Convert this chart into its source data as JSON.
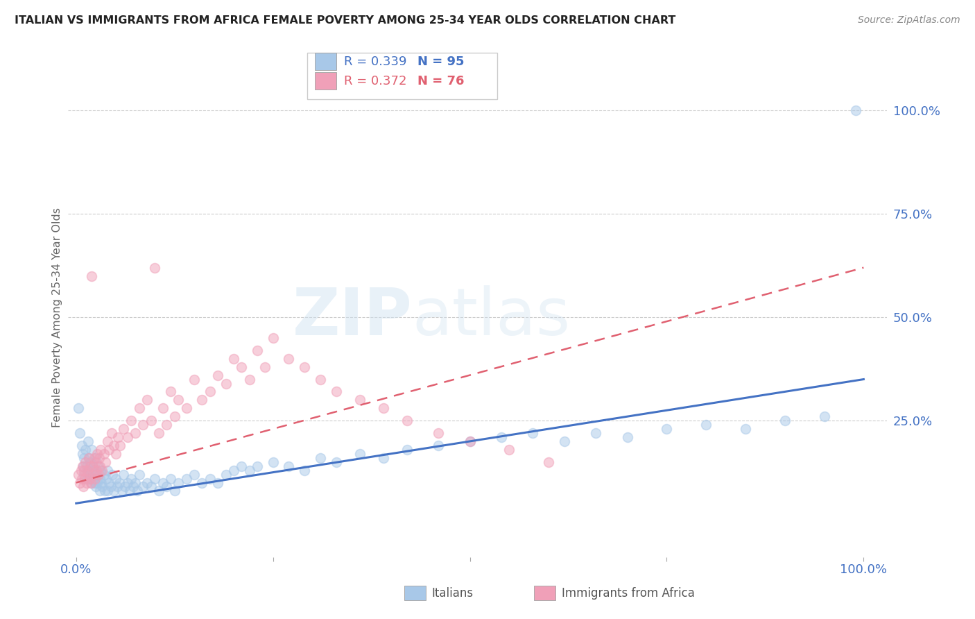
{
  "title": "ITALIAN VS IMMIGRANTS FROM AFRICA FEMALE POVERTY AMONG 25-34 YEAR OLDS CORRELATION CHART",
  "source": "Source: ZipAtlas.com",
  "ylabel": "Female Poverty Among 25-34 Year Olds",
  "ytick_labels": [
    "100.0%",
    "75.0%",
    "50.0%",
    "25.0%"
  ],
  "ytick_positions": [
    1.0,
    0.75,
    0.5,
    0.25
  ],
  "xlim": [
    0.0,
    1.0
  ],
  "ylim": [
    -0.08,
    1.08
  ],
  "legend_r1": "R = 0.339",
  "legend_n1": "N = 95",
  "legend_r2": "R = 0.372",
  "legend_n2": "N = 76",
  "color_italian": "#a8c8e8",
  "color_africa": "#f0a0b8",
  "color_line_italian": "#4472c4",
  "color_line_africa": "#e06070",
  "watermark_zip": "ZIP",
  "watermark_atlas": "atlas",
  "italian_x": [
    0.003,
    0.005,
    0.007,
    0.008,
    0.009,
    0.01,
    0.01,
    0.012,
    0.013,
    0.014,
    0.015,
    0.015,
    0.016,
    0.017,
    0.018,
    0.019,
    0.02,
    0.02,
    0.021,
    0.022,
    0.023,
    0.024,
    0.025,
    0.025,
    0.026,
    0.027,
    0.028,
    0.03,
    0.03,
    0.031,
    0.032,
    0.033,
    0.035,
    0.036,
    0.038,
    0.04,
    0.04,
    0.042,
    0.044,
    0.046,
    0.048,
    0.05,
    0.052,
    0.055,
    0.058,
    0.06,
    0.062,
    0.065,
    0.068,
    0.07,
    0.072,
    0.075,
    0.078,
    0.08,
    0.085,
    0.09,
    0.095,
    0.1,
    0.105,
    0.11,
    0.115,
    0.12,
    0.125,
    0.13,
    0.14,
    0.15,
    0.16,
    0.17,
    0.18,
    0.19,
    0.2,
    0.21,
    0.22,
    0.23,
    0.25,
    0.27,
    0.29,
    0.31,
    0.33,
    0.36,
    0.39,
    0.42,
    0.46,
    0.5,
    0.54,
    0.58,
    0.62,
    0.66,
    0.7,
    0.75,
    0.8,
    0.85,
    0.9,
    0.95,
    0.99
  ],
  "italian_y": [
    0.28,
    0.22,
    0.19,
    0.17,
    0.14,
    0.16,
    0.12,
    0.18,
    0.14,
    0.11,
    0.2,
    0.13,
    0.16,
    0.12,
    0.15,
    0.11,
    0.18,
    0.1,
    0.14,
    0.11,
    0.13,
    0.1,
    0.16,
    0.09,
    0.12,
    0.1,
    0.14,
    0.11,
    0.08,
    0.13,
    0.1,
    0.09,
    0.12,
    0.08,
    0.11,
    0.13,
    0.08,
    0.1,
    0.09,
    0.12,
    0.08,
    0.11,
    0.09,
    0.1,
    0.08,
    0.12,
    0.09,
    0.1,
    0.08,
    0.11,
    0.09,
    0.1,
    0.08,
    0.12,
    0.09,
    0.1,
    0.09,
    0.11,
    0.08,
    0.1,
    0.09,
    0.11,
    0.08,
    0.1,
    0.11,
    0.12,
    0.1,
    0.11,
    0.1,
    0.12,
    0.13,
    0.14,
    0.13,
    0.14,
    0.15,
    0.14,
    0.13,
    0.16,
    0.15,
    0.17,
    0.16,
    0.18,
    0.19,
    0.2,
    0.21,
    0.22,
    0.2,
    0.22,
    0.21,
    0.23,
    0.24,
    0.23,
    0.25,
    0.26,
    1.0
  ],
  "africa_x": [
    0.003,
    0.005,
    0.006,
    0.007,
    0.008,
    0.009,
    0.01,
    0.011,
    0.012,
    0.013,
    0.014,
    0.015,
    0.016,
    0.017,
    0.018,
    0.019,
    0.02,
    0.021,
    0.022,
    0.023,
    0.024,
    0.025,
    0.026,
    0.027,
    0.028,
    0.029,
    0.03,
    0.031,
    0.033,
    0.035,
    0.037,
    0.04,
    0.042,
    0.045,
    0.048,
    0.05,
    0.053,
    0.056,
    0.06,
    0.065,
    0.07,
    0.075,
    0.08,
    0.085,
    0.09,
    0.095,
    0.1,
    0.105,
    0.11,
    0.115,
    0.12,
    0.125,
    0.13,
    0.14,
    0.15,
    0.16,
    0.17,
    0.18,
    0.19,
    0.2,
    0.21,
    0.22,
    0.23,
    0.24,
    0.25,
    0.27,
    0.29,
    0.31,
    0.33,
    0.36,
    0.39,
    0.42,
    0.46,
    0.5,
    0.55,
    0.6
  ],
  "africa_y": [
    0.12,
    0.1,
    0.13,
    0.11,
    0.14,
    0.09,
    0.13,
    0.11,
    0.15,
    0.1,
    0.13,
    0.12,
    0.16,
    0.11,
    0.14,
    0.1,
    0.6,
    0.14,
    0.12,
    0.16,
    0.11,
    0.15,
    0.13,
    0.17,
    0.12,
    0.16,
    0.14,
    0.18,
    0.13,
    0.17,
    0.15,
    0.2,
    0.18,
    0.22,
    0.19,
    0.17,
    0.21,
    0.19,
    0.23,
    0.21,
    0.25,
    0.22,
    0.28,
    0.24,
    0.3,
    0.25,
    0.62,
    0.22,
    0.28,
    0.24,
    0.32,
    0.26,
    0.3,
    0.28,
    0.35,
    0.3,
    0.32,
    0.36,
    0.34,
    0.4,
    0.38,
    0.35,
    0.42,
    0.38,
    0.45,
    0.4,
    0.38,
    0.35,
    0.32,
    0.3,
    0.28,
    0.25,
    0.22,
    0.2,
    0.18,
    0.15
  ]
}
